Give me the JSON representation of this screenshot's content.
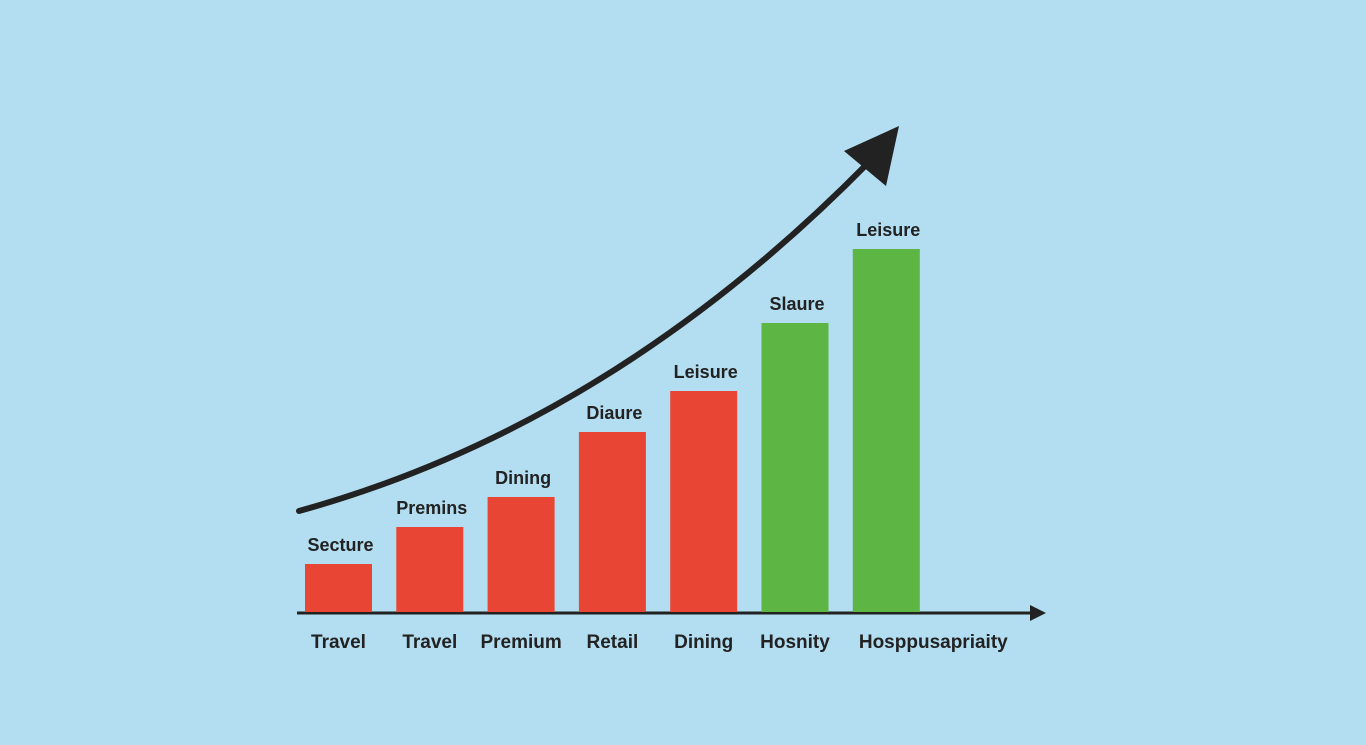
{
  "chart_data": {
    "type": "bar",
    "categories": [
      "Travel",
      "Travel",
      "Premium",
      "Retail",
      "Dining",
      "Hosnity",
      "Hosppusapriaity"
    ],
    "values": [
      48,
      85,
      115,
      180,
      221,
      289,
      363
    ],
    "bar_labels": [
      "Secture",
      "Premins",
      "Dining",
      "Diaure",
      "Leisure",
      "Slaure",
      "Leisure"
    ],
    "colors": [
      "#e84535",
      "#e84535",
      "#e84535",
      "#e84535",
      "#e84535",
      "#5db544",
      "#5db544"
    ]
  }
}
